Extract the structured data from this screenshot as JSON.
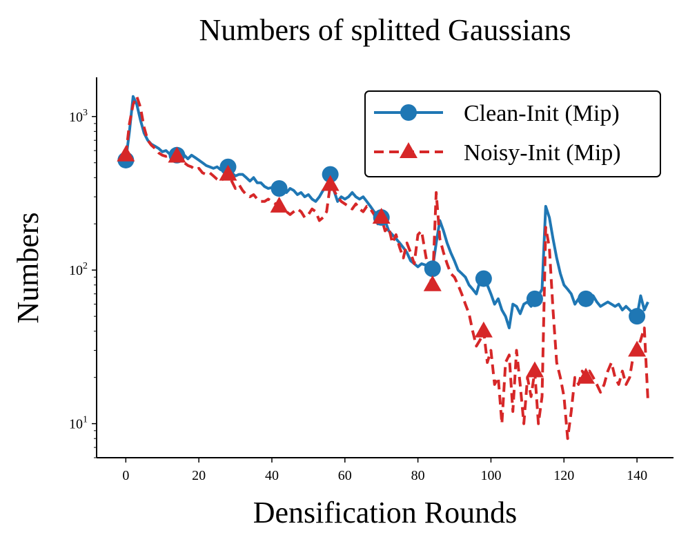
{
  "chart_data": {
    "type": "line",
    "title": "Numbers of splitted Gaussians",
    "xlabel": "Densification Rounds",
    "ylabel": "Numbers",
    "yscale": "log",
    "xlim": [
      -8,
      150
    ],
    "ylim": [
      6,
      1800
    ],
    "xticks": [
      0,
      20,
      40,
      60,
      80,
      100,
      120,
      140
    ],
    "xtick_labels": [
      "0",
      "20",
      "40",
      "60",
      "80",
      "100",
      "120",
      "140"
    ],
    "yticks": [
      10,
      100,
      1000
    ],
    "ytick_labels": [
      {
        "base": "10",
        "exp": "1"
      },
      {
        "base": "10",
        "exp": "2"
      },
      {
        "base": "10",
        "exp": "3"
      }
    ],
    "legend_position": "top-right",
    "grid": false,
    "series": [
      {
        "name": "Clean-Init (Mip)",
        "color": "#1f77b4",
        "style": "solid",
        "marker": "circle",
        "marker_every": 14,
        "x": [
          0,
          1,
          2,
          3,
          4,
          5,
          6,
          7,
          8,
          9,
          10,
          11,
          12,
          13,
          14,
          15,
          16,
          17,
          18,
          19,
          20,
          21,
          22,
          23,
          24,
          25,
          26,
          27,
          28,
          29,
          30,
          31,
          32,
          33,
          34,
          35,
          36,
          37,
          38,
          39,
          40,
          41,
          42,
          43,
          44,
          45,
          46,
          47,
          48,
          49,
          50,
          51,
          52,
          53,
          54,
          55,
          56,
          57,
          58,
          59,
          60,
          61,
          62,
          63,
          64,
          65,
          66,
          67,
          68,
          69,
          70,
          71,
          72,
          73,
          74,
          75,
          76,
          77,
          78,
          79,
          80,
          81,
          82,
          83,
          84,
          85,
          86,
          87,
          88,
          89,
          90,
          91,
          92,
          93,
          94,
          95,
          96,
          97,
          98,
          99,
          100,
          101,
          102,
          103,
          104,
          105,
          106,
          107,
          108,
          109,
          110,
          111,
          112,
          113,
          114,
          115,
          116,
          117,
          118,
          119,
          120,
          121,
          122,
          123,
          124,
          125,
          126,
          127,
          128,
          129,
          130,
          131,
          132,
          133,
          134,
          135,
          136,
          137,
          138,
          139,
          140,
          141,
          142,
          143
        ],
        "y": [
          520,
          800,
          1350,
          1200,
          950,
          780,
          700,
          660,
          640,
          620,
          590,
          600,
          570,
          560,
          560,
          540,
          560,
          530,
          560,
          540,
          520,
          500,
          480,
          470,
          460,
          470,
          450,
          460,
          470,
          430,
          410,
          420,
          420,
          400,
          380,
          400,
          370,
          370,
          350,
          340,
          345,
          350,
          340,
          330,
          320,
          340,
          330,
          310,
          320,
          300,
          310,
          290,
          280,
          300,
          330,
          350,
          420,
          330,
          280,
          300,
          290,
          300,
          320,
          300,
          290,
          300,
          280,
          260,
          240,
          230,
          220,
          210,
          180,
          170,
          160,
          150,
          140,
          130,
          115,
          110,
          105,
          110,
          108,
          105,
          102,
          150,
          210,
          180,
          150,
          130,
          115,
          100,
          95,
          90,
          80,
          75,
          70,
          85,
          88,
          80,
          70,
          60,
          65,
          55,
          50,
          42,
          60,
          58,
          52,
          60,
          62,
          58,
          65,
          68,
          75,
          260,
          220,
          160,
          120,
          95,
          80,
          75,
          70,
          60,
          65,
          68,
          65,
          70,
          68,
          62,
          58,
          60,
          62,
          60,
          58,
          60,
          55,
          58,
          55,
          52,
          50,
          68,
          55,
          62
        ]
      },
      {
        "name": "Noisy-Init (Mip)",
        "color": "#d62728",
        "style": "dashed",
        "marker": "triangle",
        "marker_every": 14,
        "x": [
          0,
          1,
          2,
          3,
          4,
          5,
          6,
          7,
          8,
          9,
          10,
          11,
          12,
          13,
          14,
          15,
          16,
          17,
          18,
          19,
          20,
          21,
          22,
          23,
          24,
          25,
          26,
          27,
          28,
          29,
          30,
          31,
          32,
          33,
          34,
          35,
          36,
          37,
          38,
          39,
          40,
          41,
          42,
          43,
          44,
          45,
          46,
          47,
          48,
          49,
          50,
          51,
          52,
          53,
          54,
          55,
          56,
          57,
          58,
          59,
          60,
          61,
          62,
          63,
          64,
          65,
          66,
          67,
          68,
          69,
          70,
          71,
          72,
          73,
          74,
          75,
          76,
          77,
          78,
          79,
          80,
          81,
          82,
          83,
          84,
          85,
          86,
          87,
          88,
          89,
          90,
          91,
          92,
          93,
          94,
          95,
          96,
          97,
          98,
          99,
          100,
          101,
          102,
          103,
          104,
          105,
          106,
          107,
          108,
          109,
          110,
          111,
          112,
          113,
          114,
          115,
          116,
          117,
          118,
          119,
          120,
          121,
          122,
          123,
          124,
          125,
          126,
          127,
          128,
          129,
          130,
          131,
          132,
          133,
          134,
          135,
          136,
          137,
          138,
          139,
          140,
          141,
          142,
          143
        ],
        "y": [
          560,
          900,
          1200,
          1350,
          1150,
          850,
          700,
          650,
          620,
          580,
          560,
          550,
          560,
          560,
          550,
          520,
          500,
          480,
          470,
          450,
          460,
          430,
          420,
          430,
          410,
          390,
          380,
          400,
          420,
          380,
          340,
          360,
          330,
          310,
          300,
          310,
          290,
          280,
          280,
          290,
          280,
          270,
          260,
          250,
          240,
          230,
          240,
          250,
          240,
          220,
          230,
          250,
          240,
          210,
          220,
          240,
          360,
          330,
          300,
          280,
          270,
          260,
          250,
          270,
          250,
          240,
          260,
          250,
          230,
          200,
          220,
          180,
          190,
          150,
          170,
          140,
          120,
          150,
          130,
          110,
          170,
          180,
          130,
          95,
          80,
          320,
          160,
          130,
          110,
          95,
          90,
          80,
          70,
          60,
          52,
          40,
          32,
          35,
          40,
          25,
          30,
          18,
          20,
          10,
          25,
          28,
          12,
          30,
          18,
          10,
          20,
          15,
          22,
          10,
          15,
          190,
          140,
          55,
          25,
          20,
          15,
          8,
          12,
          20,
          18,
          22,
          20,
          22,
          20,
          18,
          16,
          18,
          22,
          25,
          20,
          18,
          22,
          18,
          20,
          28,
          30,
          35,
          42,
          14
        ]
      }
    ]
  }
}
